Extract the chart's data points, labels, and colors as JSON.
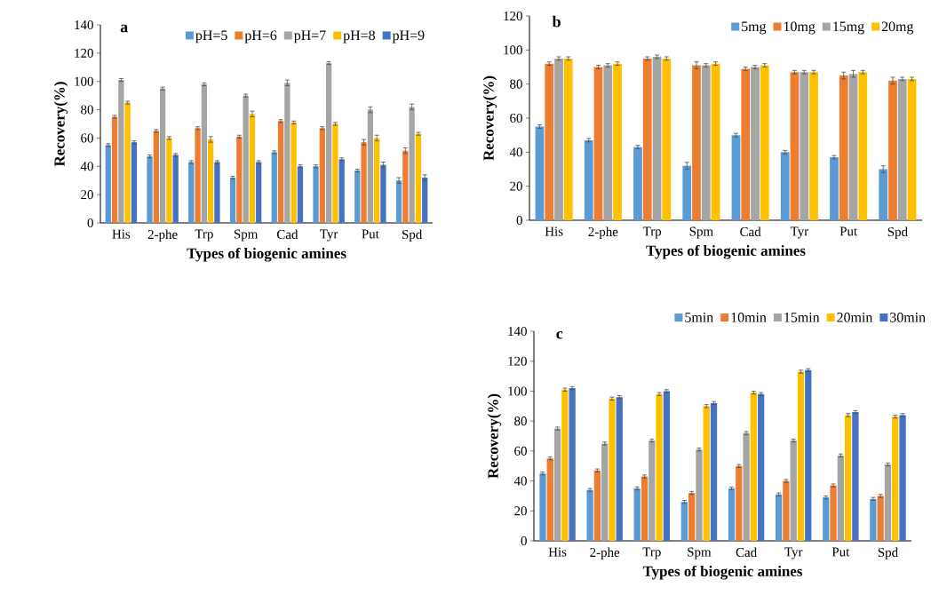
{
  "chart_data": [
    {
      "type": "bar",
      "title": "a",
      "xlabel": "Types of biogenic amines",
      "ylabel": "Recovery(%)",
      "categories": [
        "His",
        "2-phe",
        "Trp",
        "Spm",
        "Cad",
        "Tyr",
        "Put",
        "Spd"
      ],
      "ylim": [
        0,
        140
      ],
      "yticks": [
        0,
        20,
        40,
        60,
        80,
        100,
        120,
        140
      ],
      "legend": "top right",
      "series": [
        {
          "name": "pH=5",
          "color": "#5b9bd5",
          "values": [
            55,
            47,
            43,
            32,
            50,
            40,
            37,
            30
          ],
          "errors": [
            1,
            1,
            1,
            1,
            1,
            1,
            1,
            2
          ]
        },
        {
          "name": "pH=6",
          "color": "#ed7d31",
          "values": [
            75,
            65,
            67,
            61,
            72,
            67,
            57,
            51
          ],
          "errors": [
            1,
            1,
            1,
            1,
            1,
            1,
            2,
            2
          ]
        },
        {
          "name": "pH=7",
          "color": "#a5a5a5",
          "values": [
            101,
            95,
            98,
            90,
            99,
            113,
            80,
            82
          ],
          "errors": [
            1,
            1,
            1,
            1,
            2,
            1,
            2,
            2
          ]
        },
        {
          "name": "pH=8",
          "color": "#ffc000",
          "values": [
            85,
            60,
            59,
            77,
            71,
            70,
            60,
            63
          ],
          "errors": [
            1,
            1,
            2,
            2,
            1,
            1,
            2,
            1
          ]
        },
        {
          "name": "pH=9",
          "color": "#4472c4",
          "values": [
            57,
            48,
            43,
            43,
            40,
            45,
            41,
            32
          ],
          "errors": [
            1,
            1,
            1,
            1,
            1,
            1,
            2,
            2
          ]
        }
      ]
    },
    {
      "type": "bar",
      "title": "b",
      "xlabel": "Types of biogenic amines",
      "ylabel": "Recovery(%)",
      "categories": [
        "His",
        "2-phe",
        "Trp",
        "Spm",
        "Cad",
        "Tyr",
        "Put",
        "Spd"
      ],
      "ylim": [
        0,
        120
      ],
      "yticks": [
        0,
        20,
        40,
        60,
        80,
        100,
        120
      ],
      "legend": "top right",
      "series": [
        {
          "name": "5mg",
          "color": "#5b9bd5",
          "values": [
            55,
            47,
            43,
            32,
            50,
            40,
            37,
            30
          ],
          "errors": [
            1,
            1,
            1,
            2,
            1,
            1,
            1,
            2
          ]
        },
        {
          "name": "10mg",
          "color": "#ed7d31",
          "values": [
            92,
            90,
            95,
            91,
            89,
            87,
            85,
            82
          ],
          "errors": [
            1,
            1,
            1,
            2,
            1,
            1,
            2,
            2
          ]
        },
        {
          "name": "15mg",
          "color": "#a5a5a5",
          "values": [
            95,
            91,
            96,
            91,
            90,
            87,
            86,
            83
          ],
          "errors": [
            1,
            1,
            1,
            1,
            1,
            1,
            2,
            1
          ]
        },
        {
          "name": "20mg",
          "color": "#ffc000",
          "values": [
            95,
            92,
            95,
            92,
            91,
            87,
            87,
            83
          ],
          "errors": [
            1,
            1,
            1,
            1,
            1,
            1,
            1,
            1
          ]
        }
      ]
    },
    {
      "type": "bar",
      "title": "c",
      "xlabel": "Types of biogenic amines",
      "ylabel": "Recovery(%)",
      "categories": [
        "His",
        "2-phe",
        "Trp",
        "Spm",
        "Cad",
        "Tyr",
        "Put",
        "Spd"
      ],
      "ylim": [
        0,
        140
      ],
      "yticks": [
        0,
        20,
        40,
        60,
        80,
        100,
        120,
        140
      ],
      "legend": "top",
      "series": [
        {
          "name": "5min",
          "color": "#5b9bd5",
          "values": [
            45,
            34,
            35,
            26,
            35,
            31,
            29,
            28
          ],
          "errors": [
            1,
            1,
            1,
            1,
            1,
            1,
            1,
            1
          ]
        },
        {
          "name": "10min",
          "color": "#ed7d31",
          "values": [
            55,
            47,
            43,
            32,
            50,
            40,
            37,
            30
          ],
          "errors": [
            1,
            1,
            1,
            1,
            1,
            1,
            1,
            1
          ]
        },
        {
          "name": "15min",
          "color": "#a5a5a5",
          "values": [
            75,
            65,
            67,
            61,
            72,
            67,
            57,
            51
          ],
          "errors": [
            1,
            1,
            1,
            1,
            1,
            1,
            1,
            1
          ]
        },
        {
          "name": "20min",
          "color": "#ffc000",
          "values": [
            101,
            95,
            98,
            90,
            99,
            113,
            84,
            83
          ],
          "errors": [
            1,
            1,
            1,
            1,
            1,
            1,
            1,
            1
          ]
        },
        {
          "name": "30min",
          "color": "#4472c4",
          "values": [
            102,
            96,
            100,
            92,
            98,
            114,
            86,
            84
          ],
          "errors": [
            1,
            1,
            1,
            1,
            1,
            1,
            1,
            1
          ]
        }
      ]
    }
  ]
}
